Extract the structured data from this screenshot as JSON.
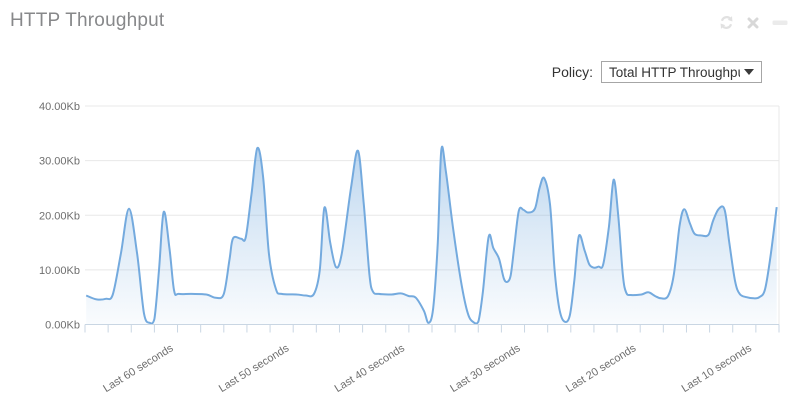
{
  "widget": {
    "title": "HTTP Throughput"
  },
  "toolbar": {
    "icons": [
      "refresh-icon",
      "close-icon",
      "minimize-icon"
    ]
  },
  "policy": {
    "label": "Policy:",
    "selected": "Total HTTP Throughput"
  },
  "colors": {
    "line": "#74aade",
    "area_top_opacity": 0.62,
    "area_mid_opacity": 0.26,
    "area_bottom_opacity": 0.04,
    "grid": "#e8e8e8",
    "axis": "#c9d6e3",
    "title": "#87888a",
    "labels": "#6e6e6e"
  },
  "chart_data": {
    "type": "area",
    "title": "HTTP Throughput",
    "x_unit": "seconds ago",
    "x_direction": "left = oldest, right = most recent",
    "x_domain": [
      67,
      7
    ],
    "ylim": [
      0,
      40
    ],
    "ylabel": "Kb",
    "grid": "horizontal",
    "legend": "none",
    "y_ticks": [
      {
        "label": "40.00Kb",
        "value": 40
      },
      {
        "label": "30.00Kb",
        "value": 30
      },
      {
        "label": "20.00Kb",
        "value": 20
      },
      {
        "label": "10.00Kb",
        "value": 10
      },
      {
        "label": "0.00Kb",
        "value": 0
      }
    ],
    "x_ticks": [
      {
        "label": "Last 60 seconds",
        "seconds_ago": 60
      },
      {
        "label": "Last 50 seconds",
        "seconds_ago": 50
      },
      {
        "label": "Last 40 seconds",
        "seconds_ago": 40
      },
      {
        "label": "Last 30 seconds",
        "seconds_ago": 30
      },
      {
        "label": "Last 20 seconds",
        "seconds_ago": 20
      },
      {
        "label": "Last 10 seconds",
        "seconds_ago": 10
      }
    ],
    "minor_tick_count": 31,
    "series": [
      {
        "name": "Total HTTP Throughput",
        "unit": "Kb",
        "points": [
          [
            66.9,
            5.3
          ],
          [
            66.0,
            4.6
          ],
          [
            65.2,
            4.7
          ],
          [
            64.6,
            5.5
          ],
          [
            63.9,
            13
          ],
          [
            63.2,
            21.2
          ],
          [
            62.5,
            13
          ],
          [
            61.9,
            2
          ],
          [
            61.4,
            0.3
          ],
          [
            61.0,
            1
          ],
          [
            60.6,
            10
          ],
          [
            60.2,
            20.6
          ],
          [
            59.7,
            14
          ],
          [
            59.3,
            6.2
          ],
          [
            58.9,
            5.6
          ],
          [
            57.8,
            5.6
          ],
          [
            56.5,
            5.5
          ],
          [
            55.7,
            4.9
          ],
          [
            55.0,
            5.6
          ],
          [
            54.5,
            12
          ],
          [
            54.2,
            15.8
          ],
          [
            53.5,
            15.7
          ],
          [
            53.1,
            16.0
          ],
          [
            52.6,
            24
          ],
          [
            52.1,
            32.3
          ],
          [
            51.6,
            27
          ],
          [
            51.1,
            13
          ],
          [
            50.5,
            6.5
          ],
          [
            50.0,
            5.6
          ],
          [
            48.7,
            5.5
          ],
          [
            47.9,
            5.3
          ],
          [
            47.2,
            5.6
          ],
          [
            46.7,
            10
          ],
          [
            46.3,
            21.4
          ],
          [
            45.8,
            15
          ],
          [
            45.3,
            10.5
          ],
          [
            44.8,
            13
          ],
          [
            44.0,
            25
          ],
          [
            43.4,
            31.8
          ],
          [
            42.9,
            22
          ],
          [
            42.4,
            9
          ],
          [
            42.1,
            6
          ],
          [
            41.6,
            5.6
          ],
          [
            40.5,
            5.5
          ],
          [
            39.7,
            5.7
          ],
          [
            39.0,
            5.2
          ],
          [
            38.4,
            4.9
          ],
          [
            37.7,
            2.5
          ],
          [
            37.3,
            0.3
          ],
          [
            36.9,
            3
          ],
          [
            36.5,
            15
          ],
          [
            36.2,
            31.9
          ],
          [
            35.8,
            28
          ],
          [
            35.2,
            18
          ],
          [
            34.5,
            8
          ],
          [
            33.9,
            2
          ],
          [
            33.4,
            0.4
          ],
          [
            33.0,
            0.5
          ],
          [
            32.6,
            6
          ],
          [
            32.1,
            16.1
          ],
          [
            31.7,
            14
          ],
          [
            31.2,
            12
          ],
          [
            30.8,
            8.5
          ],
          [
            30.5,
            7.8
          ],
          [
            30.2,
            9
          ],
          [
            29.9,
            14
          ],
          [
            29.5,
            20.8
          ],
          [
            29.1,
            21.0
          ],
          [
            28.7,
            20.5
          ],
          [
            28.1,
            21.2
          ],
          [
            27.7,
            25
          ],
          [
            27.3,
            26.8
          ],
          [
            26.8,
            22
          ],
          [
            26.4,
            10
          ],
          [
            26.0,
            3
          ],
          [
            25.6,
            0.6
          ],
          [
            25.1,
            1.5
          ],
          [
            24.7,
            8
          ],
          [
            24.3,
            16.2
          ],
          [
            23.8,
            13.5
          ],
          [
            23.4,
            11
          ],
          [
            23.0,
            10.4
          ],
          [
            22.6,
            10.6
          ],
          [
            22.2,
            11
          ],
          [
            21.7,
            18
          ],
          [
            21.3,
            26.5
          ],
          [
            20.9,
            20
          ],
          [
            20.5,
            9
          ],
          [
            20.2,
            5.8
          ],
          [
            19.8,
            5.4
          ],
          [
            18.9,
            5.5
          ],
          [
            18.3,
            5.9
          ],
          [
            17.7,
            5.2
          ],
          [
            17.2,
            4.8
          ],
          [
            16.6,
            5.2
          ],
          [
            16.1,
            9
          ],
          [
            15.6,
            18
          ],
          [
            15.2,
            21.1
          ],
          [
            14.7,
            18.5
          ],
          [
            14.3,
            16.6
          ],
          [
            13.7,
            16.3
          ],
          [
            13.1,
            16.4
          ],
          [
            12.7,
            19
          ],
          [
            12.2,
            21.2
          ],
          [
            11.7,
            21.0
          ],
          [
            11.3,
            15
          ],
          [
            10.8,
            8
          ],
          [
            10.4,
            5.6
          ],
          [
            9.8,
            5.0
          ],
          [
            9.2,
            4.8
          ],
          [
            8.7,
            5.0
          ],
          [
            8.2,
            6.5
          ],
          [
            7.7,
            13
          ],
          [
            7.2,
            21.5
          ]
        ]
      }
    ]
  }
}
